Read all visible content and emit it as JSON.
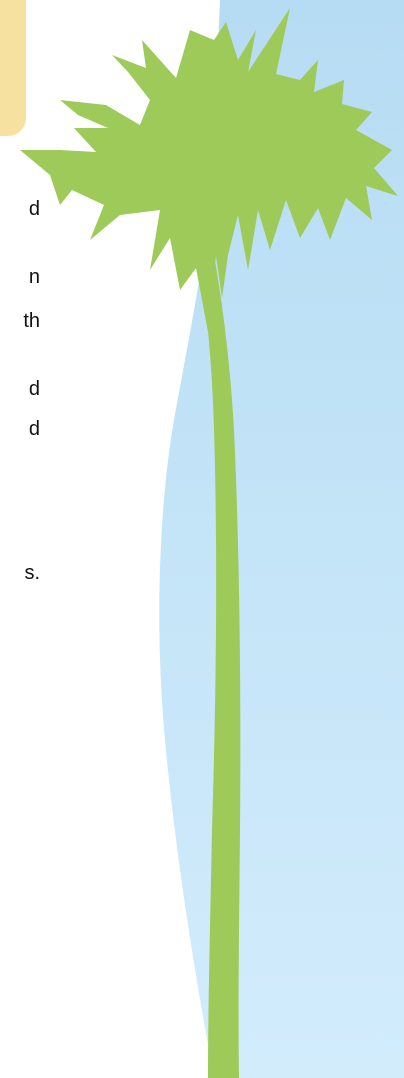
{
  "colors": {
    "sky_top": "#b6dcf3",
    "sky_bottom": "#cfeafb",
    "palm_green": "#9dca59",
    "callout_yellow": "#f7e1a1",
    "text": "#111111"
  },
  "text_fragments": [
    "d",
    "n",
    "th",
    "d",
    "d",
    "s."
  ],
  "decor": {
    "palm_tree_icon": "palm-tree-icon"
  }
}
